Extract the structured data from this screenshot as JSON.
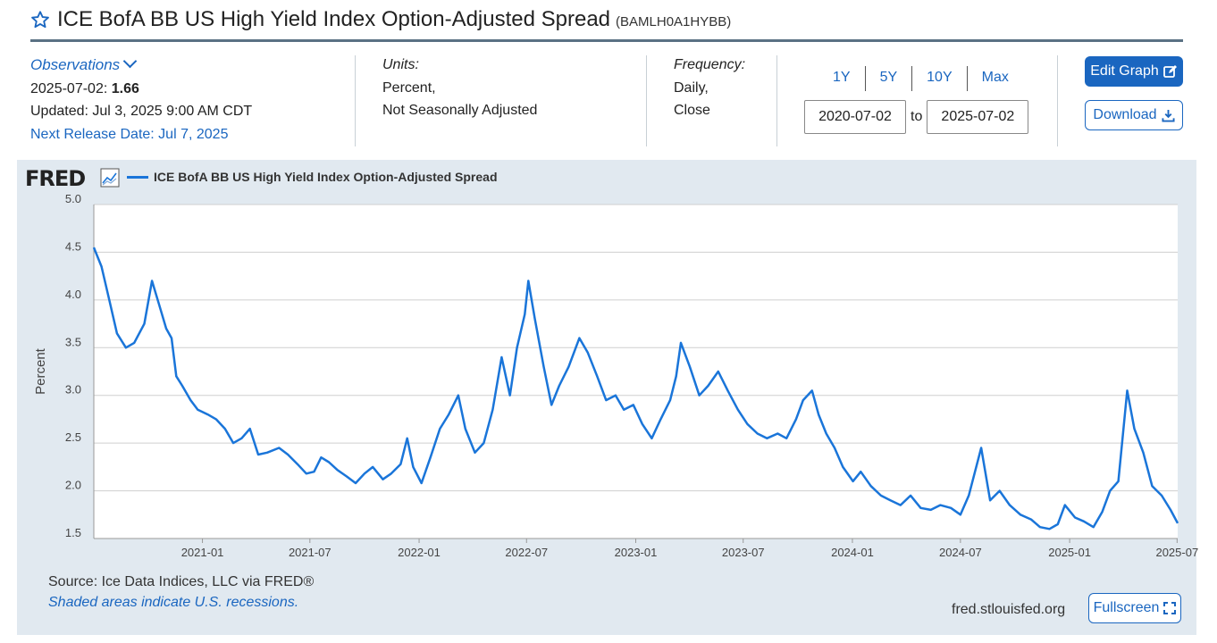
{
  "header": {
    "title": "ICE BofA BB US High Yield Index Option-Adjusted Spread",
    "series_id": "(BAMLH0A1HYBB)",
    "star_icon": "star-outline-icon"
  },
  "observations": {
    "label": "Observations",
    "date": "2025-07-02:",
    "value": "1.66",
    "updated": "Updated: Jul 3, 2025 9:00 AM CDT",
    "next_release": "Next Release Date: Jul 7, 2025"
  },
  "units": {
    "label": "Units:",
    "line1": "Percent,",
    "line2": "Not Seasonally Adjusted"
  },
  "frequency": {
    "label": "Frequency:",
    "line1": "Daily,",
    "line2": "Close"
  },
  "range_buttons": [
    "1Y",
    "5Y",
    "10Y",
    "Max"
  ],
  "date_range": {
    "start": "2020-07-02",
    "to": "to",
    "end": "2025-07-02"
  },
  "buttons": {
    "edit": "Edit Graph",
    "download": "Download",
    "fullscreen": "Fullscreen"
  },
  "footer": {
    "source": "Source: Ice Data Indices, LLC via FRED®",
    "shaded": "Shaded areas indicate U.S. recessions.",
    "url": "fred.stlouisfed.org"
  },
  "logo": "FRED",
  "colors": {
    "accent": "#1a66c0",
    "series": "#1a75d9",
    "panel": "#e1e9f0"
  },
  "chart_data": {
    "type": "line",
    "legend": "ICE BofA BB US High Yield Index Option-Adjusted Spread",
    "ylabel": "Percent",
    "ylim": [
      1.5,
      5.0
    ],
    "yticks": [
      "1.5",
      "2.0",
      "2.5",
      "3.0",
      "3.5",
      "4.0",
      "4.5",
      "5.0"
    ],
    "xlim": [
      "2020-07-02",
      "2025-07-02"
    ],
    "xticks": [
      "2021-01",
      "2021-07",
      "2022-01",
      "2022-07",
      "2023-01",
      "2023-07",
      "2024-01",
      "2024-07",
      "2025-01",
      "2025-07"
    ],
    "grid": true,
    "series": [
      {
        "name": "ICE BofA BB US High Yield Index Option-Adjusted Spread",
        "points": [
          [
            "2020-07-02",
            4.55
          ],
          [
            "2020-07-15",
            4.35
          ],
          [
            "2020-07-28",
            4.0
          ],
          [
            "2020-08-10",
            3.65
          ],
          [
            "2020-08-25",
            3.5
          ],
          [
            "2020-09-08",
            3.55
          ],
          [
            "2020-09-25",
            3.75
          ],
          [
            "2020-10-08",
            4.2
          ],
          [
            "2020-10-20",
            3.95
          ],
          [
            "2020-11-01",
            3.7
          ],
          [
            "2020-11-10",
            3.6
          ],
          [
            "2020-11-18",
            3.2
          ],
          [
            "2020-11-28",
            3.1
          ],
          [
            "2020-12-12",
            2.95
          ],
          [
            "2020-12-24",
            2.85
          ],
          [
            "2021-01-10",
            2.8
          ],
          [
            "2021-01-24",
            2.75
          ],
          [
            "2021-02-08",
            2.65
          ],
          [
            "2021-02-22",
            2.5
          ],
          [
            "2021-03-08",
            2.55
          ],
          [
            "2021-03-22",
            2.65
          ],
          [
            "2021-04-05",
            2.38
          ],
          [
            "2021-04-20",
            2.4
          ],
          [
            "2021-05-10",
            2.45
          ],
          [
            "2021-05-25",
            2.38
          ],
          [
            "2021-06-10",
            2.28
          ],
          [
            "2021-06-25",
            2.18
          ],
          [
            "2021-07-08",
            2.2
          ],
          [
            "2021-07-20",
            2.35
          ],
          [
            "2021-08-02",
            2.3
          ],
          [
            "2021-08-16",
            2.22
          ],
          [
            "2021-09-01",
            2.15
          ],
          [
            "2021-09-16",
            2.08
          ],
          [
            "2021-10-01",
            2.18
          ],
          [
            "2021-10-15",
            2.25
          ],
          [
            "2021-11-01",
            2.12
          ],
          [
            "2021-11-15",
            2.18
          ],
          [
            "2021-12-01",
            2.28
          ],
          [
            "2021-12-12",
            2.55
          ],
          [
            "2021-12-22",
            2.25
          ],
          [
            "2022-01-05",
            2.08
          ],
          [
            "2022-01-20",
            2.35
          ],
          [
            "2022-02-05",
            2.65
          ],
          [
            "2022-02-20",
            2.8
          ],
          [
            "2022-03-08",
            3.0
          ],
          [
            "2022-03-20",
            2.65
          ],
          [
            "2022-04-05",
            2.4
          ],
          [
            "2022-04-20",
            2.5
          ],
          [
            "2022-05-05",
            2.85
          ],
          [
            "2022-05-20",
            3.4
          ],
          [
            "2022-06-03",
            3.0
          ],
          [
            "2022-06-15",
            3.5
          ],
          [
            "2022-06-28",
            3.85
          ],
          [
            "2022-07-04",
            4.2
          ],
          [
            "2022-07-15",
            3.8
          ],
          [
            "2022-07-30",
            3.3
          ],
          [
            "2022-08-12",
            2.9
          ],
          [
            "2022-08-25",
            3.1
          ],
          [
            "2022-09-10",
            3.3
          ],
          [
            "2022-09-28",
            3.6
          ],
          [
            "2022-10-12",
            3.45
          ],
          [
            "2022-10-28",
            3.2
          ],
          [
            "2022-11-12",
            2.95
          ],
          [
            "2022-11-28",
            3.0
          ],
          [
            "2022-12-12",
            2.85
          ],
          [
            "2022-12-28",
            2.9
          ],
          [
            "2023-01-12",
            2.7
          ],
          [
            "2023-01-28",
            2.55
          ],
          [
            "2023-02-12",
            2.75
          ],
          [
            "2023-02-28",
            2.95
          ],
          [
            "2023-03-10",
            3.2
          ],
          [
            "2023-03-18",
            3.55
          ],
          [
            "2023-04-02",
            3.3
          ],
          [
            "2023-04-18",
            3.0
          ],
          [
            "2023-05-03",
            3.1
          ],
          [
            "2023-05-20",
            3.25
          ],
          [
            "2023-06-05",
            3.05
          ],
          [
            "2023-06-22",
            2.85
          ],
          [
            "2023-07-08",
            2.7
          ],
          [
            "2023-07-25",
            2.6
          ],
          [
            "2023-08-10",
            2.55
          ],
          [
            "2023-08-28",
            2.6
          ],
          [
            "2023-09-12",
            2.55
          ],
          [
            "2023-09-28",
            2.75
          ],
          [
            "2023-10-10",
            2.95
          ],
          [
            "2023-10-25",
            3.05
          ],
          [
            "2023-11-05",
            2.8
          ],
          [
            "2023-11-18",
            2.6
          ],
          [
            "2023-12-02",
            2.45
          ],
          [
            "2023-12-16",
            2.25
          ],
          [
            "2024-01-02",
            2.1
          ],
          [
            "2024-01-15",
            2.2
          ],
          [
            "2024-02-01",
            2.05
          ],
          [
            "2024-02-18",
            1.95
          ],
          [
            "2024-03-05",
            1.9
          ],
          [
            "2024-03-22",
            1.85
          ],
          [
            "2024-04-08",
            1.95
          ],
          [
            "2024-04-25",
            1.82
          ],
          [
            "2024-05-12",
            1.8
          ],
          [
            "2024-05-28",
            1.85
          ],
          [
            "2024-06-15",
            1.82
          ],
          [
            "2024-07-01",
            1.75
          ],
          [
            "2024-07-15",
            1.95
          ],
          [
            "2024-08-05",
            2.45
          ],
          [
            "2024-08-20",
            1.9
          ],
          [
            "2024-09-05",
            2.0
          ],
          [
            "2024-09-22",
            1.85
          ],
          [
            "2024-10-10",
            1.75
          ],
          [
            "2024-10-28",
            1.7
          ],
          [
            "2024-11-12",
            1.62
          ],
          [
            "2024-11-28",
            1.6
          ],
          [
            "2024-12-12",
            1.65
          ],
          [
            "2024-12-24",
            1.85
          ],
          [
            "2025-01-10",
            1.72
          ],
          [
            "2025-01-25",
            1.68
          ],
          [
            "2025-02-10",
            1.62
          ],
          [
            "2025-02-25",
            1.78
          ],
          [
            "2025-03-10",
            2.0
          ],
          [
            "2025-03-24",
            2.1
          ],
          [
            "2025-04-08",
            3.05
          ],
          [
            "2025-04-20",
            2.65
          ],
          [
            "2025-05-05",
            2.4
          ],
          [
            "2025-05-20",
            2.05
          ],
          [
            "2025-06-05",
            1.95
          ],
          [
            "2025-06-20",
            1.8
          ],
          [
            "2025-07-02",
            1.66
          ]
        ]
      }
    ]
  }
}
